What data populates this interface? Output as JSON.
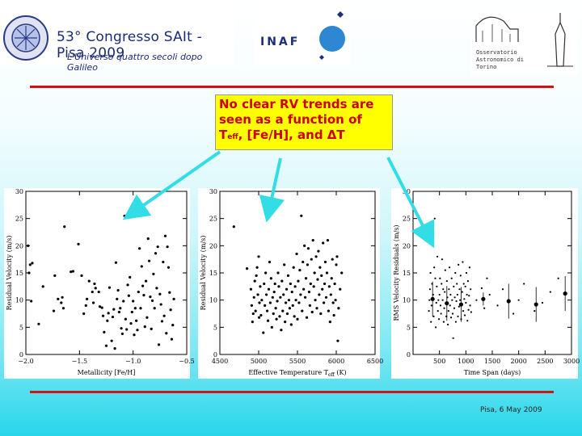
{
  "header": {
    "congress_title": "53° Congresso SAIt - Pisa 2009",
    "congress_subtitle": "L'Universo quattro secoli dopo Galileo",
    "inaf_text": "INAF",
    "observatory_lines": [
      "Osservatorio",
      "Astronomico di",
      "Torino"
    ]
  },
  "callout": {
    "line1": "No clear RV trends are",
    "line2": "seen as a function of",
    "teff_main": "T",
    "teff_sub": "eff",
    "line3_rest": ", [Fe/H], and ΔT"
  },
  "footer": {
    "date_text": "Pisa, 6 May 2009"
  },
  "colors": {
    "accent_red": "#d21313",
    "callout_bg": "#ffff00",
    "callout_text": "#cc0000",
    "arrow": "#33dde6"
  },
  "chart_data": [
    {
      "type": "scatter",
      "xlabel_main": "Metallicity [Fe/H]",
      "ylabel": "Residual Velocity (m/s)",
      "xlim": [
        -2.0,
        -0.5
      ],
      "ylim": [
        0,
        30
      ],
      "xticks": [
        -2.0,
        -1.5,
        -1.0,
        -0.5
      ],
      "xtick_labels": [
        "−2.0",
        "−1.5",
        "−1.0",
        "−0.5"
      ],
      "yticks": [
        0,
        5,
        10,
        15,
        20,
        25,
        30
      ],
      "points": [
        [
          -1.98,
          20
        ],
        [
          -1.97,
          15
        ],
        [
          -1.96,
          16.5
        ],
        [
          -1.95,
          9.8
        ],
        [
          -1.94,
          16.8
        ],
        [
          -1.88,
          5.6
        ],
        [
          -1.84,
          12.5
        ],
        [
          -1.74,
          8
        ],
        [
          -1.73,
          14.5
        ],
        [
          -1.7,
          10.2
        ],
        [
          -1.67,
          9.5
        ],
        [
          -1.66,
          10.5
        ],
        [
          -1.65,
          8.5
        ],
        [
          -1.64,
          23.5
        ],
        [
          -1.58,
          15.2
        ],
        [
          -1.56,
          15.3
        ],
        [
          -1.51,
          20.3
        ],
        [
          -1.48,
          14.5
        ],
        [
          -1.46,
          7.5
        ],
        [
          -1.44,
          9
        ],
        [
          -1.43,
          10.2
        ],
        [
          -1.41,
          13.5
        ],
        [
          -1.38,
          11.5
        ],
        [
          -1.37,
          9.5
        ],
        [
          -1.36,
          13
        ],
        [
          -1.35,
          12.2
        ],
        [
          -1.32,
          11.5
        ],
        [
          -1.31,
          8.8
        ],
        [
          -1.29,
          8.6
        ],
        [
          -1.28,
          7.1
        ],
        [
          -1.27,
          4.1
        ],
        [
          -1.25,
          1.6
        ],
        [
          -1.24,
          6.2
        ],
        [
          -1.23,
          7.6
        ],
        [
          -1.22,
          12.3
        ],
        [
          -1.2,
          2.5
        ],
        [
          -1.19,
          6.9
        ],
        [
          -1.18,
          8.3
        ],
        [
          -1.17,
          1.1
        ],
        [
          -1.16,
          16.9
        ],
        [
          -1.15,
          10.2
        ],
        [
          -1.14,
          11.8
        ],
        [
          -1.13,
          7.8
        ],
        [
          -1.12,
          8.5
        ],
        [
          -1.11,
          4.8
        ],
        [
          -1.1,
          3.8
        ],
        [
          -1.09,
          9.8
        ],
        [
          -1.08,
          25.5
        ],
        [
          -1.07,
          6.5
        ],
        [
          -1.06,
          4.6
        ],
        [
          -1.05,
          12.8
        ],
        [
          -1.04,
          10.8
        ],
        [
          -1.03,
          14.2
        ],
        [
          -1.02,
          5.7
        ],
        [
          -1.01,
          7.8
        ],
        [
          -1.0,
          9.8
        ],
        [
          -0.99,
          3.6
        ],
        [
          -0.98,
          8.5
        ],
        [
          -0.97,
          6.2
        ],
        [
          -0.96,
          4.5
        ],
        [
          -0.95,
          11.5
        ],
        [
          -0.94,
          19.5
        ],
        [
          -0.93,
          8.5
        ],
        [
          -0.92,
          16.2
        ],
        [
          -0.91,
          12.6
        ],
        [
          -0.9,
          10.9
        ],
        [
          -0.89,
          5.1
        ],
        [
          -0.88,
          13.5
        ],
        [
          -0.87,
          6.8
        ],
        [
          -0.86,
          21.3
        ],
        [
          -0.85,
          17.2
        ],
        [
          -0.84,
          10.6
        ],
        [
          -0.83,
          4.7
        ],
        [
          -0.82,
          9.9
        ],
        [
          -0.81,
          14.8
        ],
        [
          -0.8,
          8.5
        ],
        [
          -0.79,
          18.6
        ],
        [
          -0.78,
          12.2
        ],
        [
          -0.77,
          19.8
        ],
        [
          -0.76,
          1.8
        ],
        [
          -0.75,
          11.1
        ],
        [
          -0.74,
          9.2
        ],
        [
          -0.73,
          6.1
        ],
        [
          -0.72,
          17
        ],
        [
          -0.71,
          7.1
        ],
        [
          -0.7,
          21.8
        ],
        [
          -0.69,
          3.9
        ],
        [
          -0.68,
          19.8
        ],
        [
          -0.67,
          16
        ],
        [
          -0.66,
          11.4
        ],
        [
          -0.65,
          8.2
        ],
        [
          -0.64,
          2.8
        ],
        [
          -0.63,
          5.4
        ],
        [
          -0.62,
          10.2
        ]
      ]
    },
    {
      "type": "scatter",
      "xlabel_main": "Effective Temperature T",
      "xlabel_sub": "eff",
      "xlabel_unit": "(K)",
      "ylabel": "Residual Velocity (m/s)",
      "xlim": [
        4500,
        6500
      ],
      "ylim": [
        0,
        30
      ],
      "xticks": [
        4500,
        5000,
        5500,
        6000,
        6500
      ],
      "yticks": [
        0,
        5,
        10,
        15,
        20,
        25,
        30
      ],
      "points": [
        [
          4680,
          23.5
        ],
        [
          4850,
          15.8
        ],
        [
          4900,
          12
        ],
        [
          4910,
          9
        ],
        [
          4920,
          6
        ],
        [
          4930,
          7.5
        ],
        [
          4940,
          10.5
        ],
        [
          4950,
          13.5
        ],
        [
          4960,
          8
        ],
        [
          4970,
          14.5
        ],
        [
          4980,
          16
        ],
        [
          4990,
          11
        ],
        [
          5000,
          18
        ],
        [
          5005,
          6.8
        ],
        [
          5010,
          9.5
        ],
        [
          5020,
          12.5
        ],
        [
          5030,
          7.2
        ],
        [
          5040,
          10
        ],
        [
          5060,
          4
        ],
        [
          5070,
          13
        ],
        [
          5080,
          9
        ],
        [
          5090,
          15
        ],
        [
          5100,
          11
        ],
        [
          5110,
          8
        ],
        [
          5120,
          6.2
        ],
        [
          5130,
          12
        ],
        [
          5140,
          17
        ],
        [
          5150,
          9.5
        ],
        [
          5160,
          14
        ],
        [
          5170,
          5
        ],
        [
          5180,
          10.5
        ],
        [
          5190,
          7.5
        ],
        [
          5200,
          11.5
        ],
        [
          5210,
          13
        ],
        [
          5220,
          8.5
        ],
        [
          5230,
          6.5
        ],
        [
          5240,
          9.8
        ],
        [
          5250,
          15
        ],
        [
          5260,
          12.5
        ],
        [
          5270,
          7
        ],
        [
          5280,
          10.5
        ],
        [
          5290,
          4.5
        ],
        [
          5300,
          13.5
        ],
        [
          5310,
          8
        ],
        [
          5320,
          11
        ],
        [
          5330,
          16.5
        ],
        [
          5340,
          6
        ],
        [
          5350,
          9.5
        ],
        [
          5360,
          12
        ],
        [
          5370,
          7.5
        ],
        [
          5380,
          14.5
        ],
        [
          5390,
          10
        ],
        [
          5400,
          8.5
        ],
        [
          5410,
          13
        ],
        [
          5420,
          5.5
        ],
        [
          5430,
          11.5
        ],
        [
          5440,
          9
        ],
        [
          5450,
          16
        ],
        [
          5460,
          7
        ],
        [
          5470,
          12.5
        ],
        [
          5480,
          10
        ],
        [
          5490,
          18.5
        ],
        [
          5500,
          6.5
        ],
        [
          5510,
          13.5
        ],
        [
          5520,
          9.5
        ],
        [
          5530,
          15.5
        ],
        [
          5540,
          11
        ],
        [
          5550,
          25.5
        ],
        [
          5560,
          8
        ],
        [
          5570,
          17
        ],
        [
          5580,
          12
        ],
        [
          5590,
          20
        ],
        [
          5600,
          10.5
        ],
        [
          5610,
          14
        ],
        [
          5620,
          6.8
        ],
        [
          5630,
          16.5
        ],
        [
          5640,
          19.5
        ],
        [
          5650,
          11.5
        ],
        [
          5660,
          9
        ],
        [
          5670,
          13
        ],
        [
          5680,
          17.5
        ],
        [
          5690,
          7.8
        ],
        [
          5700,
          21
        ],
        [
          5710,
          12.5
        ],
        [
          5720,
          15
        ],
        [
          5730,
          10
        ],
        [
          5740,
          18
        ],
        [
          5750,
          8.5
        ],
        [
          5760,
          13.8
        ],
        [
          5770,
          19
        ],
        [
          5780,
          11
        ],
        [
          5790,
          16
        ],
        [
          5800,
          7.5
        ],
        [
          5810,
          14.5
        ],
        [
          5820,
          12
        ],
        [
          5830,
          20.5
        ],
        [
          5840,
          9.5
        ],
        [
          5850,
          13
        ],
        [
          5860,
          17
        ],
        [
          5870,
          10.5
        ],
        [
          5880,
          15
        ],
        [
          5890,
          21
        ],
        [
          5900,
          8
        ],
        [
          5910,
          12.5
        ],
        [
          5920,
          6
        ],
        [
          5930,
          11
        ],
        [
          5940,
          14
        ],
        [
          5950,
          17.5
        ],
        [
          5960,
          9.5
        ],
        [
          5970,
          7.2
        ],
        [
          5980,
          13
        ],
        [
          5990,
          10
        ],
        [
          6000,
          16.5
        ],
        [
          6010,
          18
        ],
        [
          6020,
          2.5
        ],
        [
          6030,
          8.5
        ],
        [
          6050,
          12
        ],
        [
          6070,
          15
        ]
      ]
    },
    {
      "type": "scatter",
      "xlabel_main": "Time Span (days)",
      "ylabel": "RMS Velocity Residuals (m/s)",
      "xlim": [
        0,
        3000
      ],
      "ylim": [
        0,
        30
      ],
      "xticks": [
        500,
        1000,
        1500,
        2000,
        2500,
        3000
      ],
      "yticks": [
        0,
        5,
        10,
        15,
        20,
        25,
        30
      ],
      "points": [
        [
          300,
          8
        ],
        [
          310,
          10
        ],
        [
          320,
          12
        ],
        [
          330,
          15
        ],
        [
          340,
          6
        ],
        [
          350,
          9
        ],
        [
          360,
          13
        ],
        [
          370,
          20
        ],
        [
          380,
          11
        ],
        [
          390,
          7
        ],
        [
          400,
          16
        ],
        [
          410,
          25
        ],
        [
          420,
          14
        ],
        [
          430,
          5
        ],
        [
          440,
          9.5
        ],
        [
          450,
          12.5
        ],
        [
          460,
          18
        ],
        [
          470,
          8
        ],
        [
          480,
          10
        ],
        [
          490,
          6.5
        ],
        [
          500,
          11
        ],
        [
          510,
          14
        ],
        [
          520,
          9
        ],
        [
          530,
          7.5
        ],
        [
          540,
          13
        ],
        [
          550,
          17.5
        ],
        [
          560,
          10
        ],
        [
          570,
          12
        ],
        [
          580,
          6
        ],
        [
          590,
          8.5
        ],
        [
          600,
          11.5
        ],
        [
          610,
          15.5
        ],
        [
          620,
          9.5
        ],
        [
          630,
          7
        ],
        [
          640,
          13.5
        ],
        [
          650,
          10.5
        ],
        [
          660,
          5.5
        ],
        [
          670,
          8
        ],
        [
          680,
          12
        ],
        [
          690,
          16
        ],
        [
          700,
          9
        ],
        [
          710,
          11
        ],
        [
          720,
          6.8
        ],
        [
          730,
          14
        ],
        [
          740,
          10
        ],
        [
          750,
          7.5
        ],
        [
          760,
          3
        ],
        [
          770,
          12.5
        ],
        [
          780,
          8.5
        ],
        [
          790,
          10.5
        ],
        [
          800,
          15
        ],
        [
          810,
          6
        ],
        [
          820,
          9.8
        ],
        [
          830,
          13
        ],
        [
          840,
          11
        ],
        [
          850,
          7
        ],
        [
          860,
          16.5
        ],
        [
          870,
          8.8
        ],
        [
          880,
          12
        ],
        [
          890,
          10
        ],
        [
          900,
          14.5
        ],
        [
          910,
          6.5
        ],
        [
          920,
          9
        ],
        [
          930,
          11.5
        ],
        [
          940,
          17
        ],
        [
          950,
          8
        ],
        [
          960,
          13
        ],
        [
          970,
          10.2
        ],
        [
          980,
          7.2
        ],
        [
          990,
          12.5
        ],
        [
          1000,
          9.5
        ],
        [
          1010,
          15
        ],
        [
          1020,
          11
        ],
        [
          1030,
          6.2
        ],
        [
          1040,
          13.5
        ],
        [
          1050,
          8.2
        ],
        [
          1060,
          10.8
        ],
        [
          1070,
          16
        ],
        [
          1080,
          9
        ],
        [
          1090,
          12
        ],
        [
          1100,
          7.8
        ],
        [
          1200,
          10
        ],
        [
          1300,
          12.2
        ],
        [
          1350,
          8.5
        ],
        [
          1400,
          14
        ],
        [
          1450,
          11
        ],
        [
          1600,
          9
        ],
        [
          1700,
          12
        ],
        [
          1900,
          7.5
        ],
        [
          2000,
          10
        ],
        [
          2100,
          13
        ],
        [
          2300,
          8
        ],
        [
          2450,
          9.5
        ],
        [
          2600,
          11.5
        ],
        [
          2750,
          14
        ]
      ],
      "binned_means": [
        [
          370,
          10.2
        ],
        [
          640,
          9.4
        ],
        [
          910,
          9.2
        ],
        [
          1330,
          10.2
        ],
        [
          1810,
          9.8
        ],
        [
          2330,
          9.2
        ],
        [
          2880,
          11.2
        ]
      ],
      "binned_errors": [
        [
          3.2,
          3.2
        ],
        [
          3.2,
          3.2
        ],
        [
          3.2,
          3.2
        ],
        [
          1.2,
          1.2
        ],
        [
          3.2,
          3.2
        ],
        [
          3.2,
          3.2
        ],
        [
          3.2,
          3.2
        ]
      ]
    }
  ]
}
